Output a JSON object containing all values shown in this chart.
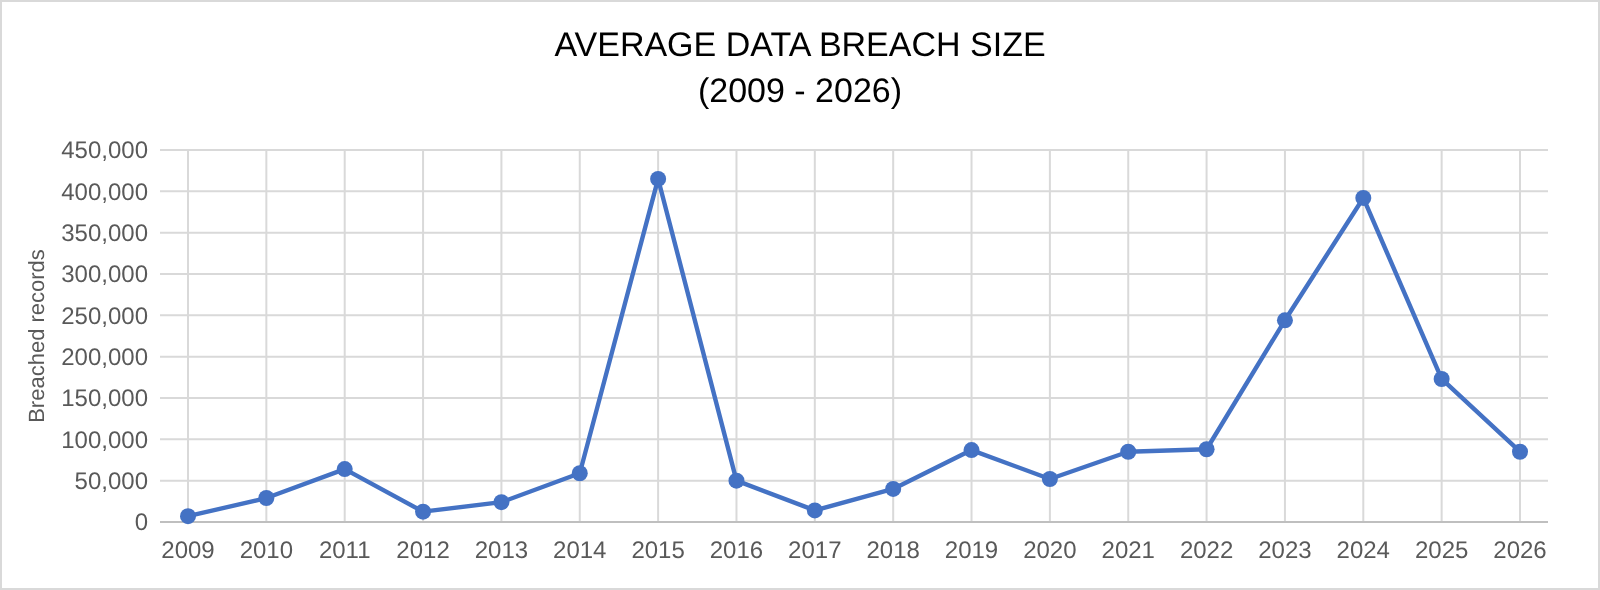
{
  "chart_data": {
    "type": "line",
    "title": "AVERAGE DATA BREACH SIZE",
    "subtitle": "(2009 - 2026)",
    "ylabel": "Breached records",
    "categories": [
      "2009",
      "2010",
      "2011",
      "2012",
      "2013",
      "2014",
      "2015",
      "2016",
      "2017",
      "2018",
      "2019",
      "2020",
      "2021",
      "2022",
      "2023",
      "2024",
      "2025",
      "2026"
    ],
    "series": [
      {
        "color": "#4472c4",
        "values": [
          7000,
          29000,
          64000,
          12500,
          24000,
          59000,
          415000,
          50000,
          14000,
          40000,
          87000,
          52000,
          85000,
          88000,
          244000,
          392000,
          173000,
          85000
        ]
      }
    ],
    "ylim": [
      0,
      450000
    ],
    "yticks": [
      {
        "value": 0,
        "label": "0"
      },
      {
        "value": 50000,
        "label": "50,000"
      },
      {
        "value": 100000,
        "label": "100,000"
      },
      {
        "value": 150000,
        "label": "150,000"
      },
      {
        "value": 200000,
        "label": "200,000"
      },
      {
        "value": 250000,
        "label": "250,000"
      },
      {
        "value": 300000,
        "label": "300,000"
      },
      {
        "value": 350000,
        "label": "350,000"
      },
      {
        "value": 400000,
        "label": "400,000"
      },
      {
        "value": 450000,
        "label": "450,000"
      }
    ],
    "grid": true,
    "marker": "circle",
    "line_style": "solid"
  }
}
